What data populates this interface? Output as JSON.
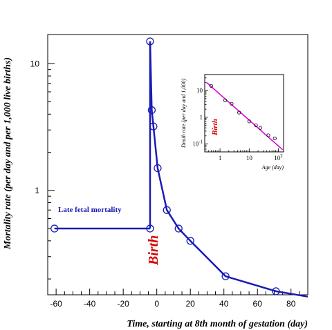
{
  "chart_data": [
    {
      "type": "line",
      "xlabel": "Time, starting at 8th month of gestation (day)",
      "ylabel": "Mortality rate (per day and per 1,000 live births)",
      "xlim": [
        -65,
        90
      ],
      "ylim": [
        0.15,
        17
      ],
      "yscale": "log",
      "x_ticks": [
        "-60",
        "-40",
        "-20",
        "0",
        "20",
        "40",
        "60",
        "80"
      ],
      "y_ticks": [
        "1",
        "10"
      ],
      "grid": false,
      "line_color": "#1a1ab4",
      "series": [
        {
          "points": [
            [
              -61,
              0.5
            ],
            [
              -4,
              0.5
            ]
          ],
          "label": "Late fetal mortality",
          "label_color": "#1a1ab4"
        },
        {
          "points": [
            [
              -4,
              15
            ],
            [
              -3,
              4.3
            ],
            [
              -2,
              3.2
            ],
            [
              0.5,
              1.5
            ],
            [
              6,
              0.7
            ],
            [
              13,
              0.5
            ],
            [
              20,
              0.4
            ],
            [
              41,
              0.21
            ],
            [
              71,
              0.16
            ],
            [
              90,
              0.145
            ]
          ]
        }
      ],
      "vertical_jump": {
        "x": -4,
        "y_from": 0.5,
        "y_to": 15
      },
      "annotation": {
        "text": "Birth",
        "color": "#d40000",
        "x": -4,
        "y": 0.33
      }
    },
    {
      "type": "scatter",
      "inset": true,
      "xlabel": "Age (day)",
      "ylabel": "Death rate (per day and 1,000)",
      "xscale": "log",
      "yscale": "log",
      "xlim": [
        0.3,
        150
      ],
      "ylim": [
        0.05,
        40
      ],
      "x_ticks": [
        {
          "value": 1,
          "label": "1"
        },
        {
          "value": 10,
          "label": "10"
        },
        {
          "value": 100,
          "label": "10",
          "exp": "2"
        }
      ],
      "y_ticks": [
        {
          "value": 10,
          "label": "10"
        },
        {
          "value": 1,
          "label": "1"
        },
        {
          "value": 0.1,
          "label": "10",
          "exp": "-1"
        }
      ],
      "points": [
        [
          0.5,
          15
        ],
        [
          1.5,
          4.3
        ],
        [
          2.5,
          3.2
        ],
        [
          4.5,
          1.5
        ],
        [
          10,
          0.7
        ],
        [
          17,
          0.5
        ],
        [
          24,
          0.4
        ],
        [
          45,
          0.21
        ],
        [
          75,
          0.16
        ]
      ],
      "fit": [
        [
          0.35,
          20
        ],
        [
          140,
          0.06
        ]
      ],
      "fit_color": "#e000e0",
      "annotation": {
        "text": "Birth",
        "color": "#d40000"
      }
    }
  ]
}
